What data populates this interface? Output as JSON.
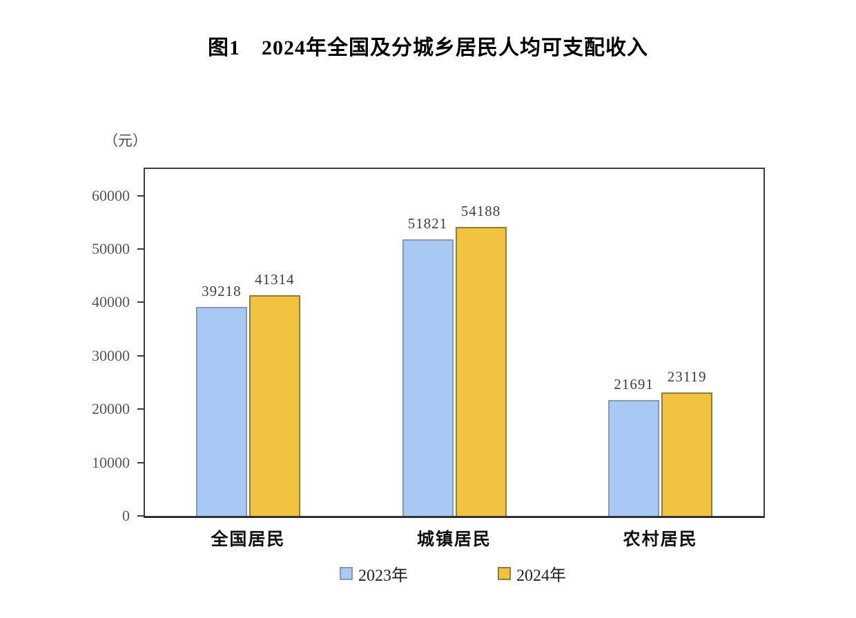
{
  "page": {
    "title": "图1　2024年全国及分城乡居民人均可支配收入"
  },
  "chart_data": {
    "type": "bar",
    "title": "图1　2024年全国及分城乡居民人均可支配收入",
    "unit_label": "（元）",
    "categories": [
      "全国居民",
      "城镇居民",
      "农村居民"
    ],
    "series": [
      {
        "name": "2023年",
        "values": [
          39218,
          51821,
          21691
        ],
        "color": "#A8C9F3",
        "border_color": "#8899AD"
      },
      {
        "name": "2024年",
        "values": [
          41314,
          54188,
          23119
        ],
        "color": "#F2C241",
        "border_color": "#8E7E3C"
      }
    ],
    "value_labels": [
      [
        39218,
        51821,
        21691
      ],
      [
        41314,
        54188,
        23119
      ]
    ],
    "ylabel": "",
    "xlabel": "",
    "ylim": [
      0,
      65000
    ],
    "yticks": [
      0,
      10000,
      20000,
      30000,
      40000,
      50000,
      60000
    ],
    "grid": false,
    "legend_position": "bottom",
    "axis_color": "#3C3C3C"
  }
}
